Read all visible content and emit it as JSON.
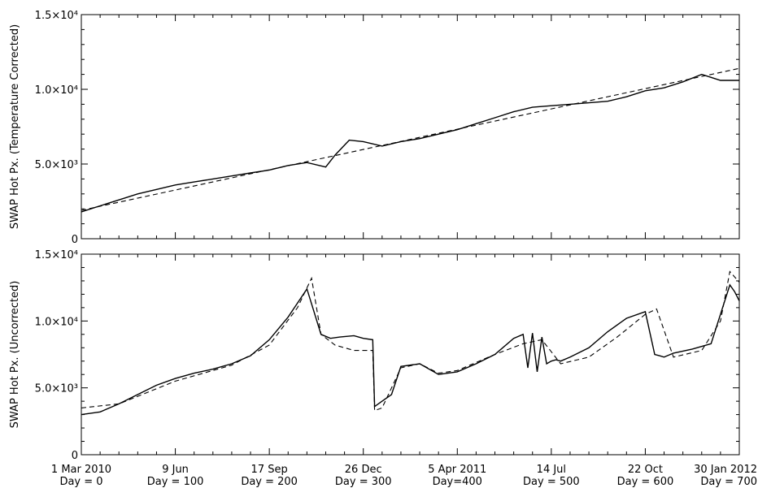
{
  "chart_data": [
    {
      "type": "line",
      "ylabel": "SWAP Hot Px. (Temperature Corrected)",
      "ylim": [
        0,
        15000
      ],
      "xlim": [
        0,
        700
      ],
      "yticks": [
        {
          "value": 0,
          "label": "0"
        },
        {
          "value": 5000,
          "label": "5.0×10³"
        },
        {
          "value": 10000,
          "label": "1.0×10⁴"
        },
        {
          "value": 15000,
          "label": "1.5×10⁴"
        }
      ],
      "series": [
        {
          "style": "solid",
          "x": [
            0,
            20,
            40,
            60,
            80,
            100,
            120,
            140,
            160,
            180,
            200,
            220,
            240,
            260,
            270,
            285,
            300,
            320,
            340,
            360,
            380,
            400,
            420,
            440,
            460,
            480,
            500,
            520,
            540,
            560,
            580,
            600,
            620,
            640,
            660,
            670,
            680,
            700
          ],
          "y": [
            1800,
            2200,
            2600,
            3000,
            3300,
            3600,
            3800,
            4000,
            4200,
            4400,
            4600,
            4900,
            5100,
            4800,
            5600,
            6600,
            6500,
            6200,
            6500,
            6700,
            7000,
            7300,
            7700,
            8100,
            8500,
            8800,
            8900,
            9000,
            9100,
            9200,
            9500,
            9900,
            10100,
            10500,
            11000,
            10800,
            10600,
            10600
          ]
        },
        {
          "style": "dashed",
          "x": [
            0,
            700
          ],
          "y": [
            1900,
            11400
          ]
        }
      ]
    },
    {
      "type": "line",
      "ylabel": "SWAP Hot Px. (Uncorrected)",
      "ylim": [
        0,
        15000
      ],
      "xlim": [
        0,
        700
      ],
      "yticks": [
        {
          "value": 0,
          "label": "0"
        },
        {
          "value": 5000,
          "label": "5.0×10³"
        },
        {
          "value": 10000,
          "label": "1.0×10⁴"
        },
        {
          "value": 15000,
          "label": "1.5×10⁴"
        }
      ],
      "xticks": [
        {
          "value": 0,
          "date": "1 Mar 2010",
          "day": "Day = 0"
        },
        {
          "value": 100,
          "date": "9 Jun",
          "day": "Day = 100"
        },
        {
          "value": 200,
          "date": "17 Sep",
          "day": "Day = 200"
        },
        {
          "value": 300,
          "date": "26 Dec",
          "day": "Day = 300"
        },
        {
          "value": 400,
          "date": "5 Apr 2011",
          "day": "Day=400"
        },
        {
          "value": 500,
          "date": "14 Jul",
          "day": "Day = 500"
        },
        {
          "value": 600,
          "date": "22 Oct",
          "day": "Day = 600"
        },
        {
          "value": 700,
          "date": "30 Jan 2012",
          "day": "Day = 700"
        }
      ],
      "series": [
        {
          "style": "solid",
          "x": [
            0,
            20,
            40,
            60,
            80,
            100,
            120,
            140,
            160,
            180,
            200,
            220,
            240,
            255,
            265,
            275,
            290,
            300,
            310,
            312,
            320,
            330,
            340,
            360,
            380,
            400,
            420,
            440,
            460,
            470,
            475,
            480,
            485,
            490,
            495,
            500,
            505,
            510,
            520,
            540,
            560,
            580,
            600,
            610,
            615,
            620,
            630,
            650,
            670,
            690,
            695,
            700
          ],
          "y": [
            3000,
            3200,
            3800,
            4500,
            5200,
            5700,
            6100,
            6400,
            6800,
            7400,
            8600,
            10300,
            12400,
            9000,
            8700,
            8800,
            8900,
            8700,
            8600,
            3600,
            4000,
            4500,
            6600,
            6800,
            6000,
            6200,
            6800,
            7500,
            8700,
            9000,
            6500,
            9100,
            6200,
            8800,
            6800,
            7000,
            7100,
            7000,
            7300,
            8000,
            9200,
            10200,
            10700,
            7500,
            7400,
            7300,
            7600,
            7900,
            8300,
            12700,
            12200,
            11500
          ]
        },
        {
          "style": "dashed",
          "x": [
            0,
            40,
            100,
            160,
            200,
            230,
            245,
            255,
            270,
            290,
            300,
            310,
            312,
            320,
            330,
            340,
            360,
            380,
            400,
            440,
            470,
            490,
            510,
            540,
            570,
            600,
            612,
            630,
            660,
            680,
            690,
            695,
            700
          ],
          "y": [
            3500,
            3800,
            5500,
            6700,
            8200,
            11000,
            13200,
            9000,
            8200,
            7800,
            7800,
            7800,
            3300,
            3500,
            5000,
            6500,
            6800,
            6100,
            6300,
            7500,
            8300,
            8600,
            6800,
            7300,
            8800,
            10500,
            10900,
            7300,
            7800,
            10000,
            13700,
            13300,
            12900
          ]
        }
      ]
    }
  ]
}
